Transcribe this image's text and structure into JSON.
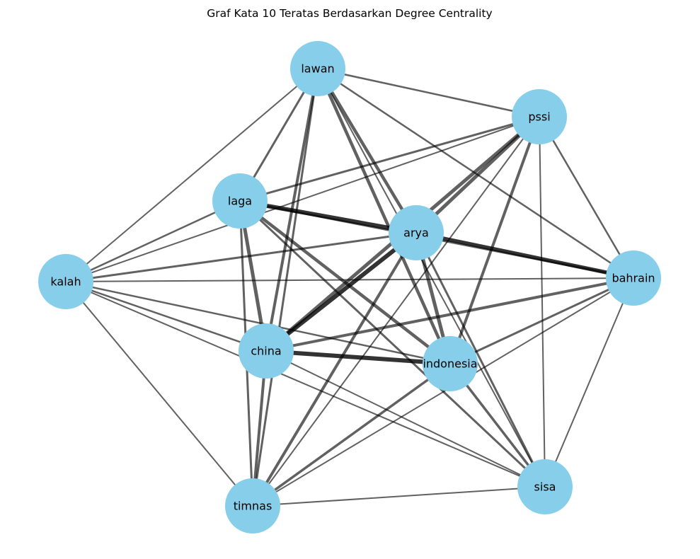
{
  "title": "Graf Kata 10 Teratas Berdasarkan Degree Centrality",
  "colors": {
    "node": "#87CEEB",
    "edge": "#000000",
    "label": "#000000"
  },
  "nodes": [
    {
      "id": "lawan",
      "label": "lawan"
    },
    {
      "id": "pssi",
      "label": "pssi"
    },
    {
      "id": "laga",
      "label": "laga"
    },
    {
      "id": "arya",
      "label": "arya"
    },
    {
      "id": "kalah",
      "label": "kalah"
    },
    {
      "id": "bahrain",
      "label": "bahrain"
    },
    {
      "id": "china",
      "label": "china"
    },
    {
      "id": "indonesia",
      "label": "indonesia"
    },
    {
      "id": "sisa",
      "label": "sisa"
    },
    {
      "id": "timnas",
      "label": "timnas"
    }
  ],
  "edges": [
    {
      "source": "lawan",
      "target": "pssi",
      "weight": 2.5
    },
    {
      "source": "lawan",
      "target": "laga",
      "weight": 3
    },
    {
      "source": "lawan",
      "target": "arya",
      "weight": 4.5
    },
    {
      "source": "lawan",
      "target": "kalah",
      "weight": 2
    },
    {
      "source": "lawan",
      "target": "bahrain",
      "weight": 2.5
    },
    {
      "source": "lawan",
      "target": "china",
      "weight": 4
    },
    {
      "source": "lawan",
      "target": "indonesia",
      "weight": 4.5
    },
    {
      "source": "lawan",
      "target": "sisa",
      "weight": 2
    },
    {
      "source": "lawan",
      "target": "timnas",
      "weight": 3
    },
    {
      "source": "pssi",
      "target": "laga",
      "weight": 3
    },
    {
      "source": "pssi",
      "target": "arya",
      "weight": 5
    },
    {
      "source": "pssi",
      "target": "kalah",
      "weight": 2
    },
    {
      "source": "pssi",
      "target": "bahrain",
      "weight": 2.5
    },
    {
      "source": "pssi",
      "target": "china",
      "weight": 5
    },
    {
      "source": "pssi",
      "target": "indonesia",
      "weight": 4
    },
    {
      "source": "pssi",
      "target": "sisa",
      "weight": 2
    },
    {
      "source": "pssi",
      "target": "timnas",
      "weight": 2
    },
    {
      "source": "laga",
      "target": "arya",
      "weight": 6
    },
    {
      "source": "laga",
      "target": "kalah",
      "weight": 2.5
    },
    {
      "source": "laga",
      "target": "bahrain",
      "weight": 3
    },
    {
      "source": "laga",
      "target": "china",
      "weight": 5
    },
    {
      "source": "laga",
      "target": "indonesia",
      "weight": 4.5
    },
    {
      "source": "laga",
      "target": "sisa",
      "weight": 3
    },
    {
      "source": "laga",
      "target": "timnas",
      "weight": 3
    },
    {
      "source": "arya",
      "target": "kalah",
      "weight": 3
    },
    {
      "source": "arya",
      "target": "bahrain",
      "weight": 5.5
    },
    {
      "source": "arya",
      "target": "china",
      "weight": 6
    },
    {
      "source": "arya",
      "target": "indonesia",
      "weight": 5
    },
    {
      "source": "arya",
      "target": "sisa",
      "weight": 3
    },
    {
      "source": "arya",
      "target": "timnas",
      "weight": 4
    },
    {
      "source": "kalah",
      "target": "bahrain",
      "weight": 2
    },
    {
      "source": "kalah",
      "target": "china",
      "weight": 2.5
    },
    {
      "source": "kalah",
      "target": "indonesia",
      "weight": 2.5
    },
    {
      "source": "kalah",
      "target": "sisa",
      "weight": 2
    },
    {
      "source": "kalah",
      "target": "timnas",
      "weight": 2
    },
    {
      "source": "bahrain",
      "target": "china",
      "weight": 4
    },
    {
      "source": "bahrain",
      "target": "indonesia",
      "weight": 3
    },
    {
      "source": "bahrain",
      "target": "sisa",
      "weight": 2
    },
    {
      "source": "bahrain",
      "target": "timnas",
      "weight": 2
    },
    {
      "source": "china",
      "target": "indonesia",
      "weight": 6
    },
    {
      "source": "china",
      "target": "sisa",
      "weight": 2
    },
    {
      "source": "china",
      "target": "timnas",
      "weight": 4
    },
    {
      "source": "indonesia",
      "target": "sisa",
      "weight": 3.5
    },
    {
      "source": "indonesia",
      "target": "timnas",
      "weight": 3.5
    },
    {
      "source": "sisa",
      "target": "timnas",
      "weight": 2
    }
  ]
}
